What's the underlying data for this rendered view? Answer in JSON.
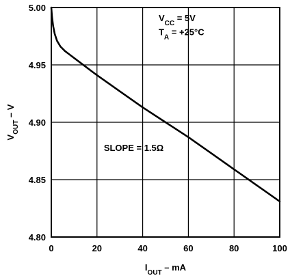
{
  "chart_data": {
    "type": "line",
    "title": "",
    "xlabel": {
      "main": "I",
      "sub": "OUT",
      "rest": " – mA"
    },
    "ylabel": {
      "main": "V",
      "sub": "OUT",
      "rest": " – V"
    },
    "xlim": [
      0,
      100
    ],
    "ylim": [
      4.8,
      5.0
    ],
    "grid": true,
    "xticks": [
      {
        "value": 0,
        "label": "0"
      },
      {
        "value": 20,
        "label": "20"
      },
      {
        "value": 40,
        "label": "40"
      },
      {
        "value": 60,
        "label": "60"
      },
      {
        "value": 80,
        "label": "80"
      },
      {
        "value": 100,
        "label": "100"
      }
    ],
    "yticks": [
      {
        "value": 4.8,
        "label": "4.80"
      },
      {
        "value": 4.85,
        "label": "4.85"
      },
      {
        "value": 4.9,
        "label": "4.90"
      },
      {
        "value": 4.95,
        "label": "4.95"
      },
      {
        "value": 5.0,
        "label": "5.00"
      }
    ],
    "series": [
      {
        "x": [
          0,
          0.3,
          0.8,
          1.5,
          2.5,
          4,
          6,
          8,
          10,
          20,
          30,
          40,
          50,
          60,
          70,
          80,
          90,
          100
        ],
        "y": [
          5.0,
          4.992,
          4.984,
          4.977,
          4.971,
          4.966,
          4.962,
          4.959,
          4.956,
          4.941,
          4.927,
          4.913,
          4.9,
          4.887,
          4.873,
          4.859,
          4.845,
          4.831
        ]
      }
    ],
    "annotations": [
      {
        "id": "vcc",
        "main": "V",
        "sub": "CC",
        "rest": " = 5V",
        "x": 47,
        "y": 4.988
      },
      {
        "id": "ta",
        "main": "T",
        "sub": "A",
        "rest": " = +25°C",
        "x": 47,
        "y": 4.976
      },
      {
        "id": "slope",
        "main": "SLOPE = 1.5Ω",
        "sub": "",
        "rest": "",
        "x": 23,
        "y": 4.875
      }
    ],
    "style": {
      "line_color": "#000000",
      "grid_color": "#000000",
      "axis_color": "#000000"
    }
  }
}
